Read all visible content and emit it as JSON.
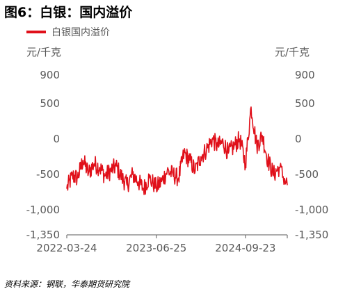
{
  "title": "图6：白银：国内溢价",
  "source": "资料来源：钢联，华泰期货研究院",
  "colors": {
    "series": "#e0101a",
    "axis": "#595959",
    "text": "#595959"
  },
  "chart_data": {
    "type": "line",
    "title": "图6：白银：国内溢价",
    "y_unit_left": "元/千克",
    "y_unit_right": "元/千克",
    "y_ticks": [
      {
        "value": 900,
        "label": "900"
      },
      {
        "value": 500,
        "label": "500"
      },
      {
        "value": 0,
        "label": "0"
      },
      {
        "value": -500,
        "label": "-500"
      },
      {
        "value": -1000,
        "label": "-1,000"
      },
      {
        "value": -1350,
        "label": "-1,350"
      }
    ],
    "ylim": [
      -1350,
      900
    ],
    "x_ticks": [
      "2022-03-24",
      "2023-06-25",
      "2024-09-23"
    ],
    "xlim": [
      "2022-03-24",
      "2025-04-25"
    ],
    "grid": false,
    "legend_position": "top-left",
    "series": [
      {
        "name": "白银国内溢价",
        "x": [
          "2022-03-24",
          "2022-04-22",
          "2022-05-18",
          "2022-06-15",
          "2022-07-13",
          "2022-08-10",
          "2022-09-08",
          "2022-10-06",
          "2022-11-03",
          "2022-12-01",
          "2023-01-01",
          "2023-01-26",
          "2023-02-24",
          "2023-03-24",
          "2023-04-21",
          "2023-05-19",
          "2023-06-25",
          "2023-07-22",
          "2023-08-20",
          "2023-09-18",
          "2023-10-17",
          "2023-11-14",
          "2023-12-13",
          "2024-01-10",
          "2024-02-08",
          "2024-03-08",
          "2024-04-06",
          "2024-05-04",
          "2024-06-01",
          "2024-06-28",
          "2024-07-27",
          "2024-08-25",
          "2024-09-23",
          "2024-10-22",
          "2024-11-20",
          "2024-12-18",
          "2025-01-16",
          "2025-02-14",
          "2025-03-15",
          "2025-04-25"
        ],
        "values": [
          -700,
          -520,
          -550,
          -300,
          -480,
          -350,
          -400,
          -520,
          -450,
          -380,
          -550,
          -650,
          -500,
          -600,
          -700,
          -550,
          -680,
          -600,
          -450,
          -500,
          -550,
          -200,
          -300,
          -450,
          -250,
          -150,
          0,
          -100,
          -50,
          -200,
          -100,
          0,
          -350,
          450,
          -100,
          50,
          -300,
          -500,
          -400,
          -650
        ]
      }
    ]
  }
}
